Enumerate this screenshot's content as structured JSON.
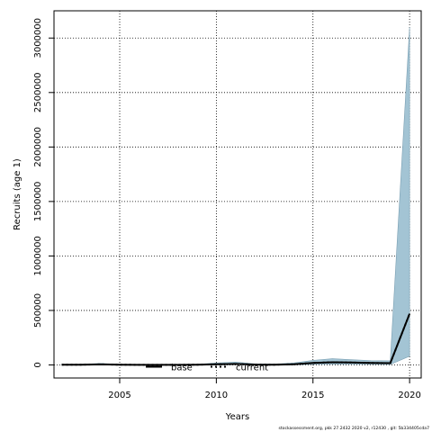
{
  "chart_data": {
    "type": "area",
    "xlabel": "Years",
    "ylabel": "Recruits (age 1)",
    "xlim": [
      2001.6,
      2020.6
    ],
    "ylim": [
      -120000,
      3250000
    ],
    "xticks": [
      2005,
      2010,
      2015,
      2020
    ],
    "xtick_labels": [
      "2005",
      "2010",
      "2015",
      "2020"
    ],
    "yticks": [
      0,
      500000,
      1000000,
      1500000,
      2000000,
      2500000,
      3000000
    ],
    "ytick_labels": [
      "0",
      "500000",
      "1000000",
      "1500000",
      "2000000",
      "2500000",
      "3000000"
    ],
    "grid": true,
    "x": [
      2002,
      2003,
      2004,
      2005,
      2006,
      2007,
      2008,
      2009,
      2010,
      2011,
      2012,
      2013,
      2014,
      2015,
      2016,
      2017,
      2018,
      2019,
      2020
    ],
    "series": [
      {
        "name": "base",
        "line_style": "solid",
        "color": "#000000",
        "values": [
          2000,
          2000,
          5000,
          2000,
          1000,
          1000,
          1000,
          2000,
          6000,
          9000,
          3000,
          2000,
          6000,
          18000,
          25000,
          22000,
          18000,
          16000,
          470000
        ]
      },
      {
        "name": "current",
        "line_style": "dotted",
        "color": "#000000",
        "values": [
          2000,
          2000,
          5000,
          2000,
          1000,
          1000,
          1000,
          2000,
          6000,
          9000,
          3000,
          2000,
          6000,
          18000,
          25000,
          22000,
          18000,
          16000,
          470000
        ]
      }
    ],
    "interval": {
      "color": "#a3c4d4",
      "upper": [
        6000,
        6000,
        14000,
        6000,
        4000,
        4000,
        4000,
        6000,
        18000,
        26000,
        10000,
        8000,
        18000,
        42000,
        57000,
        48000,
        40000,
        38000,
        3100000
      ],
      "lower": [
        0,
        0,
        1000,
        0,
        0,
        0,
        0,
        0,
        1000,
        2000,
        0,
        0,
        1000,
        5000,
        8000,
        7000,
        5000,
        4000,
        80000
      ]
    },
    "legend": {
      "placement": "bottom-center",
      "entries": [
        "base",
        "current"
      ]
    },
    "footer": "stockassessment.org,  pkk 27.2432  2020  v2,  r12430  ,  git:  5b334405cda7"
  }
}
